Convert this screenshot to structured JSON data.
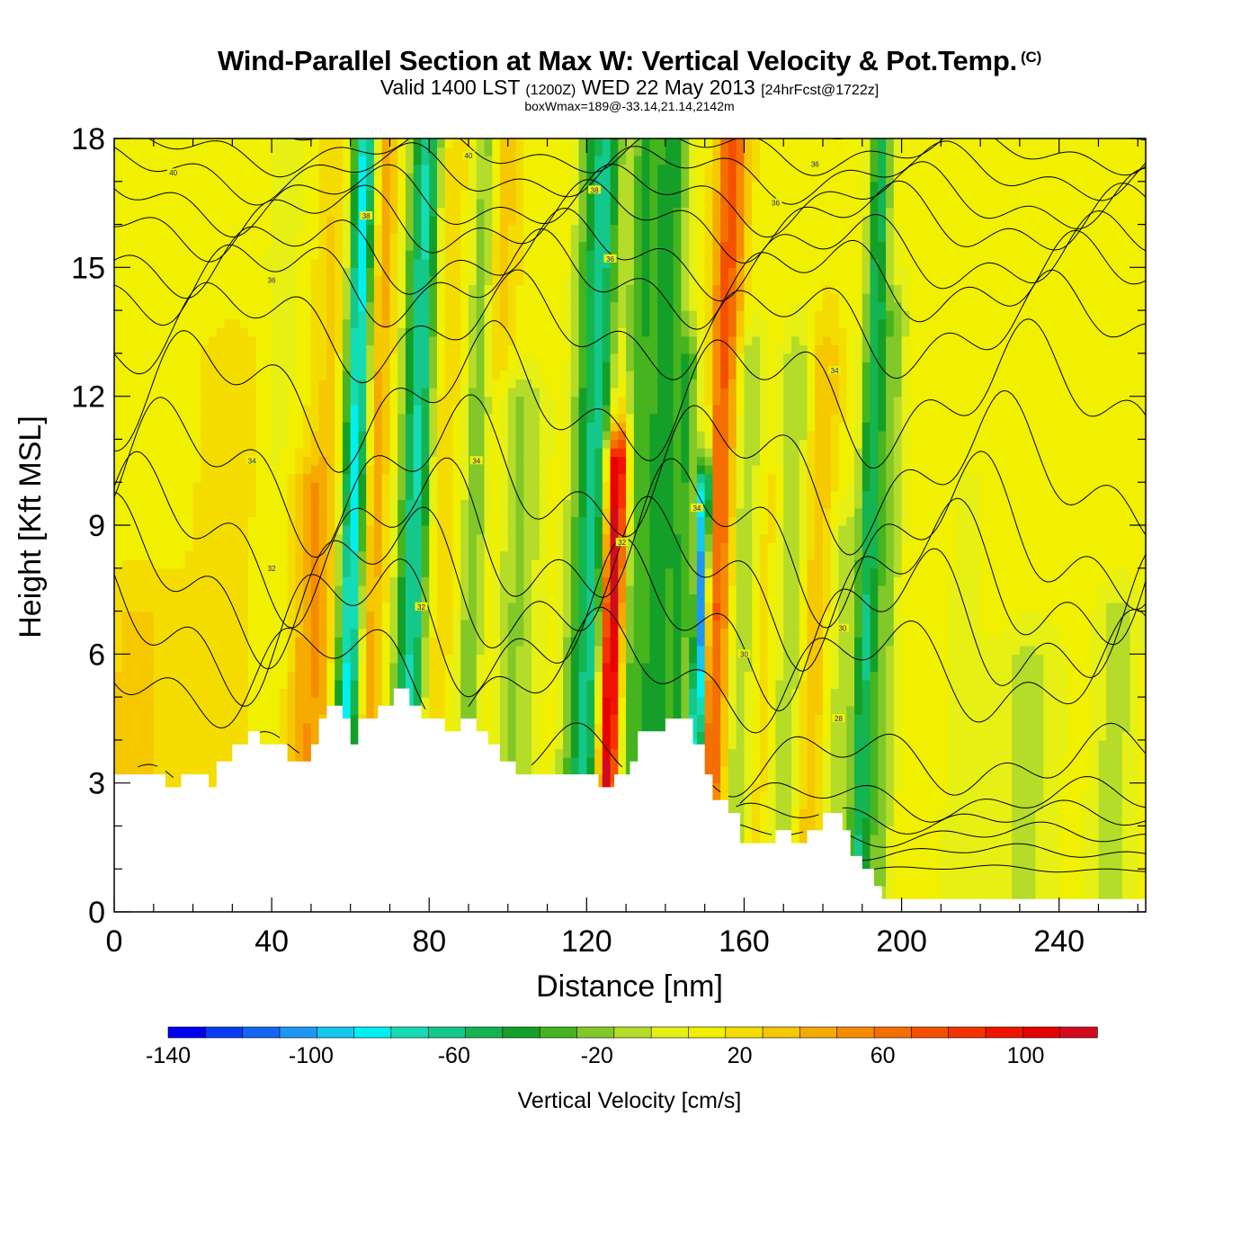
{
  "header": {
    "title": "Wind-Parallel Section at Max W: Vertical Velocity & Pot.Temp.",
    "copyright_mark": "(C)",
    "valid_prefix": "Valid 1400 LST",
    "valid_utc": "(1200Z)",
    "valid_date": "WED 22 May 2013",
    "forecast_info": "[24hrFcst@1722z]",
    "box_info": "boxWmax=189@-33.14,21.14,2142m"
  },
  "colors": {
    "terrain": "#ffffff",
    "contour_line": "#000000",
    "contour_label": "#1a1aa0"
  },
  "chart_data": {
    "type": "heatmap",
    "title": "Wind-Parallel Section at Max W: Vertical Velocity & Pot.Temp.",
    "xlabel": "Distance [nm]",
    "ylabel": "Height [Kft MSL]",
    "xlim": [
      0,
      262
    ],
    "ylim": [
      0,
      18
    ],
    "x_ticks": [
      0,
      40,
      80,
      120,
      160,
      200,
      240
    ],
    "y_ticks": [
      0,
      3,
      6,
      9,
      12,
      15,
      18
    ],
    "background_value": 12,
    "colorbar": {
      "label": "Vertical Velocity [cm/s]",
      "ticks": [
        -140,
        -100,
        -60,
        -20,
        20,
        60,
        100
      ],
      "min": -140,
      "max": 120,
      "colors": [
        "#0000f0",
        "#0a3cf5",
        "#1464f5",
        "#1e96f5",
        "#14c8f0",
        "#00f0f0",
        "#14dcb4",
        "#14c88c",
        "#14b450",
        "#14a028",
        "#46b41e",
        "#82c828",
        "#b4dc28",
        "#e6f014",
        "#f0f000",
        "#f5dc00",
        "#f5c800",
        "#f5aa00",
        "#f58c00",
        "#f56e00",
        "#f55000",
        "#f53200",
        "#f01400",
        "#e60000",
        "#d20a1e"
      ]
    },
    "w_features": [
      {
        "x": 5,
        "ytop": 7,
        "w": 10,
        "v": 28
      },
      {
        "x": 28,
        "ytop": 13,
        "w": 6,
        "v": 24
      },
      {
        "x": 39,
        "ytop": 18,
        "w": 4.5,
        "v": 2
      },
      {
        "x": 48,
        "ytop": 10,
        "w": 4,
        "v": 38
      },
      {
        "x": 52,
        "ytop": 18,
        "w": 3.5,
        "v": 28
      },
      {
        "x": 58,
        "ytop": 18,
        "w": 2.2,
        "v": -40
      },
      {
        "x": 60,
        "ytop": 18,
        "w": 2.2,
        "v": -52
      },
      {
        "x": 62,
        "ytop": 18,
        "w": 2.5,
        "v": 24
      },
      {
        "x": 64,
        "ytop": 18,
        "w": 2.4,
        "v": 42
      },
      {
        "x": 73,
        "ytop": 18,
        "w": 2.4,
        "v": -36
      },
      {
        "x": 76,
        "ytop": 18,
        "w": 2.2,
        "v": -44
      },
      {
        "x": 80,
        "ytop": 18,
        "w": 3.5,
        "v": 26
      },
      {
        "x": 90,
        "ytop": 18,
        "w": 2.4,
        "v": -36
      },
      {
        "x": 93,
        "ytop": 18,
        "w": 3.5,
        "v": 40
      },
      {
        "x": 100,
        "ytop": 12,
        "w": 6,
        "v": -20
      },
      {
        "x": 110,
        "ytop": 13,
        "w": 5,
        "v": 18
      },
      {
        "x": 117,
        "ytop": 18,
        "w": 3,
        "v": -32
      },
      {
        "x": 121,
        "ytop": 18,
        "w": 2.5,
        "v": -40
      },
      {
        "x": 125,
        "ytop": 10.5,
        "w": 1.8,
        "v": 100
      },
      {
        "x": 127,
        "ytop": 11,
        "w": 2,
        "v": 60
      },
      {
        "x": 130,
        "ytop": 18,
        "w": 2.5,
        "v": -34
      },
      {
        "x": 137,
        "ytop": 18,
        "w": 3,
        "v": -44
      },
      {
        "x": 143,
        "ytop": 13,
        "w": 2,
        "v": -28
      },
      {
        "x": 148,
        "ytop": 10,
        "w": 1.2,
        "v": -120
      },
      {
        "x": 151,
        "ytop": 18,
        "w": 2.2,
        "v": 56
      },
      {
        "x": 154,
        "ytop": 18,
        "w": 2.2,
        "v": 44
      },
      {
        "x": 158,
        "ytop": 13,
        "w": 3,
        "v": -20
      },
      {
        "x": 164,
        "ytop": 10,
        "w": 3,
        "v": 24
      },
      {
        "x": 171,
        "ytop": 13,
        "w": 3,
        "v": -18
      },
      {
        "x": 177,
        "ytop": 13,
        "w": 3,
        "v": 40
      },
      {
        "x": 183,
        "ytop": 9,
        "w": 3,
        "v": -10
      },
      {
        "x": 190,
        "ytop": 18,
        "w": 2,
        "v": -52
      },
      {
        "x": 195,
        "ytop": 14,
        "w": 2.5,
        "v": -18
      },
      {
        "x": 215,
        "ytop": 10,
        "w": 5,
        "v": 4
      },
      {
        "x": 232,
        "ytop": 6,
        "w": 6,
        "v": -8
      },
      {
        "x": 254,
        "ytop": 7,
        "w": 4,
        "v": -10
      }
    ],
    "terrain_profile": [
      [
        0,
        3.2
      ],
      [
        13,
        3.2
      ],
      [
        13,
        2.9
      ],
      [
        17,
        2.9
      ],
      [
        17,
        3.2
      ],
      [
        24,
        3.2
      ],
      [
        24,
        2.9
      ],
      [
        26,
        2.9
      ],
      [
        26,
        3.5
      ],
      [
        30,
        3.5
      ],
      [
        30,
        3.9
      ],
      [
        34,
        3.9
      ],
      [
        34,
        4.2
      ],
      [
        37,
        4.2
      ],
      [
        37,
        3.9
      ],
      [
        44,
        3.9
      ],
      [
        44,
        3.5
      ],
      [
        50,
        3.5
      ],
      [
        50,
        3.9
      ],
      [
        52,
        3.9
      ],
      [
        52,
        4.5
      ],
      [
        54,
        4.5
      ],
      [
        54,
        4.8
      ],
      [
        58,
        4.8
      ],
      [
        58,
        4.5
      ],
      [
        60,
        4.5
      ],
      [
        60,
        3.9
      ],
      [
        62,
        3.9
      ],
      [
        62,
        4.5
      ],
      [
        67,
        4.5
      ],
      [
        67,
        4.8
      ],
      [
        71,
        4.8
      ],
      [
        71,
        5.2
      ],
      [
        75,
        5.2
      ],
      [
        75,
        4.8
      ],
      [
        78,
        4.8
      ],
      [
        78,
        4.5
      ],
      [
        84,
        4.5
      ],
      [
        84,
        4.2
      ],
      [
        88,
        4.2
      ],
      [
        88,
        4.5
      ],
      [
        92,
        4.5
      ],
      [
        92,
        4.2
      ],
      [
        95,
        4.2
      ],
      [
        95,
        3.9
      ],
      [
        98,
        3.9
      ],
      [
        98,
        3.5
      ],
      [
        102,
        3.5
      ],
      [
        102,
        3.2
      ],
      [
        113,
        3.2
      ],
      [
        113,
        3.2
      ],
      [
        123,
        3.2
      ],
      [
        123,
        2.9
      ],
      [
        127,
        2.9
      ],
      [
        127,
        3.2
      ],
      [
        131,
        3.2
      ],
      [
        131,
        3.5
      ],
      [
        133,
        3.5
      ],
      [
        133,
        4.2
      ],
      [
        140,
        4.2
      ],
      [
        140,
        4.5
      ],
      [
        147,
        4.5
      ],
      [
        147,
        3.9
      ],
      [
        150,
        3.9
      ],
      [
        150,
        3.2
      ],
      [
        152,
        3.2
      ],
      [
        152,
        2.6
      ],
      [
        156,
        2.6
      ],
      [
        156,
        2.3
      ],
      [
        159,
        2.3
      ],
      [
        159,
        1.6
      ],
      [
        163,
        1.6
      ],
      [
        163,
        1.6
      ],
      [
        168,
        1.6
      ],
      [
        168,
        1.9
      ],
      [
        172,
        1.9
      ],
      [
        172,
        1.6
      ],
      [
        176,
        1.6
      ],
      [
        176,
        1.9
      ],
      [
        180,
        1.9
      ],
      [
        180,
        2.3
      ],
      [
        185,
        2.3
      ],
      [
        185,
        1.9
      ],
      [
        187,
        1.9
      ],
      [
        187,
        1.3
      ],
      [
        190,
        1.3
      ],
      [
        190,
        1.0
      ],
      [
        193,
        1.0
      ],
      [
        193,
        0.6
      ],
      [
        195,
        0.6
      ],
      [
        195,
        0.3
      ],
      [
        262,
        0.3
      ]
    ],
    "theta_contours": [
      {
        "base": 18.3,
        "a": [
          0.2,
          0.15
        ],
        "label": ""
      },
      {
        "base": 17.7,
        "a": [
          0.35,
          0.25
        ],
        "label": ""
      },
      {
        "base": 17.2,
        "a": [
          0.45,
          0.3
        ],
        "label": "40"
      },
      {
        "base": 16.6,
        "a": [
          0.55,
          0.35
        ],
        "label": ""
      },
      {
        "base": 16.1,
        "a": [
          0.6,
          0.4
        ],
        "label": "38"
      },
      {
        "base": 15.3,
        "a": [
          0.65,
          0.45
        ],
        "label": ""
      },
      {
        "base": 14.7,
        "a": [
          0.7,
          0.5
        ],
        "label": "36"
      },
      {
        "base": 13.6,
        "a": [
          0.8,
          0.55
        ],
        "label": ""
      },
      {
        "base": 12.0,
        "a": [
          1.1,
          0.7
        ],
        "label": ""
      },
      {
        "base": 10.2,
        "a": [
          1.2,
          0.75
        ],
        "label": "34"
      },
      {
        "base": 8.7,
        "a": [
          1.3,
          0.8
        ],
        "label": ""
      },
      {
        "base": 7.7,
        "a": [
          1.3,
          0.8
        ],
        "label": "32"
      },
      {
        "base": 6.7,
        "a": [
          1.25,
          0.8
        ],
        "label": ""
      },
      {
        "base": 5.6,
        "a": [
          0.9,
          0.6
        ],
        "label": "30"
      },
      {
        "base": 3.5,
        "a": [
          0.5,
          0.4
        ],
        "label": ""
      },
      {
        "base": 2.6,
        "a": [
          0.3,
          0.25
        ],
        "label": "28"
      },
      {
        "base": 2.2,
        "a": [
          0.2,
          0.2
        ],
        "label": ""
      },
      {
        "base": 1.8,
        "a": [
          0.15,
          0.15
        ],
        "label": ""
      },
      {
        "base": 1.4,
        "a": [
          0.1,
          0.1
        ],
        "label": ""
      },
      {
        "base": 1.0,
        "a": [
          0.05,
          0.05
        ],
        "label": ""
      }
    ],
    "contour_labels_text": [
      "40",
      "40",
      "38",
      "38",
      "36",
      "36",
      "36",
      "36",
      "34",
      "34",
      "34",
      "34",
      "32",
      "32",
      "32",
      "30",
      "30",
      "28"
    ]
  }
}
